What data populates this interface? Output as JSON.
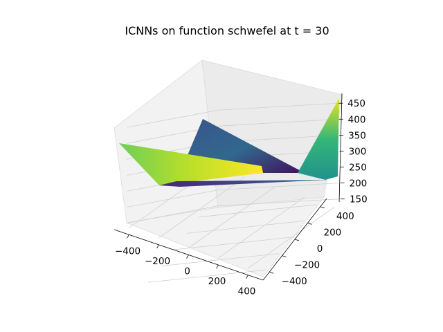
{
  "chart_data": {
    "type": "surface3d",
    "title": "ICNNs on function schwefel at t = 30",
    "colormap": "viridis",
    "x_ticks": [
      -400,
      -200,
      0,
      200,
      400
    ],
    "x_tick_labels": [
      "−400",
      "−200",
      "0",
      "200",
      "400"
    ],
    "y_ticks": [
      -400,
      -200,
      0,
      200,
      400
    ],
    "y_tick_labels": [
      "−400",
      "−200",
      "0",
      "200",
      "400"
    ],
    "z_ticks": [
      150,
      200,
      250,
      300,
      350,
      400,
      450
    ],
    "z_tick_labels": [
      "150",
      "200",
      "250",
      "300",
      "350",
      "400",
      "450"
    ],
    "xlim": [
      -500,
      500
    ],
    "ylim": [
      -500,
      500
    ],
    "zlim": [
      145,
      470
    ],
    "grid": true,
    "surface_points": [
      {
        "x": -500,
        "y": -500,
        "z": 340
      },
      {
        "x": -500,
        "y": 500,
        "z": 380
      },
      {
        "x": 500,
        "y": -500,
        "z": 205
      },
      {
        "x": 500,
        "y": 500,
        "z": 460
      },
      {
        "x": -300,
        "y": 0,
        "z": 200
      },
      {
        "x": 100,
        "y": 200,
        "z": 190
      }
    ]
  }
}
